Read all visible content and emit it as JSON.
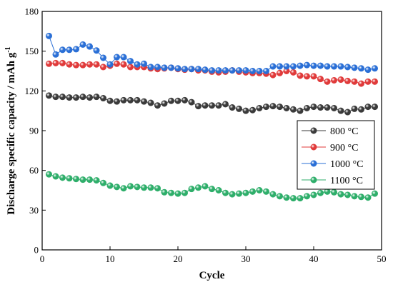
{
  "chart_data": {
    "type": "line",
    "xlabel": "Cycle",
    "ylabel": "Discharge specific capacity / mAh g",
    "ylabel_superscript": "-1",
    "xlim": [
      0,
      50
    ],
    "ylim": [
      0,
      180
    ],
    "x_ticks": [
      0,
      10,
      20,
      30,
      40,
      50
    ],
    "y_ticks": [
      0,
      30,
      60,
      90,
      120,
      150,
      180
    ],
    "grid": false,
    "legend_position": "right",
    "x": [
      1,
      2,
      3,
      4,
      5,
      6,
      7,
      8,
      9,
      10,
      11,
      12,
      13,
      14,
      15,
      16,
      17,
      18,
      19,
      20,
      21,
      22,
      23,
      24,
      25,
      26,
      27,
      28,
      29,
      30,
      31,
      32,
      33,
      34,
      35,
      36,
      37,
      38,
      39,
      40,
      41,
      42,
      43,
      44,
      45,
      46,
      47,
      48,
      49
    ],
    "series": [
      {
        "name": "800 °C",
        "color": "#3a3a3a",
        "values": [
          116.5,
          115.5,
          115.5,
          115,
          115,
          115.5,
          115,
          115.5,
          114.5,
          112.5,
          112,
          113,
          113,
          113,
          112,
          111,
          109,
          110.5,
          112.5,
          112.5,
          113,
          111.5,
          108.5,
          109,
          109,
          109,
          110,
          107.5,
          106.5,
          105,
          105.5,
          107,
          108,
          108.5,
          108,
          107,
          106,
          105,
          107,
          108,
          107.5,
          107.5,
          107,
          105,
          104,
          106.5,
          106,
          108,
          108
        ]
      },
      {
        "name": "900 °C",
        "color": "#e03a3a",
        "values": [
          140.5,
          141,
          141,
          140,
          139.5,
          139.5,
          140,
          140,
          138,
          139,
          140.5,
          140,
          138,
          138,
          138,
          137,
          136.5,
          137,
          137.5,
          136.5,
          136,
          136.5,
          135.5,
          135.5,
          134.5,
          134,
          134.5,
          135.5,
          134.5,
          134,
          133.5,
          133.5,
          133,
          132,
          133.5,
          135,
          134,
          131.5,
          131,
          131,
          129,
          127,
          128,
          128.5,
          127.5,
          127,
          125.5,
          127,
          127
        ]
      },
      {
        "name": "1000 °C",
        "color": "#2a6fd6",
        "values": [
          161.5,
          147.5,
          151,
          151,
          151.5,
          155,
          153.5,
          150.5,
          145,
          140,
          145.5,
          145.5,
          142.5,
          140,
          140.5,
          138,
          138,
          137.5,
          137.5,
          137,
          136.5,
          136.5,
          136.5,
          136,
          135.5,
          135.5,
          135.5,
          135.5,
          135.5,
          135.5,
          135,
          135,
          135,
          138.5,
          138.5,
          138.5,
          138.5,
          139,
          139.5,
          139,
          139,
          138.5,
          138.5,
          138.5,
          138,
          137.5,
          137,
          136,
          137
        ]
      },
      {
        "name": "1100 °C",
        "color": "#2eae6a",
        "values": [
          57,
          55.5,
          54.5,
          54,
          53.5,
          53,
          53,
          52.5,
          50.5,
          48.5,
          47.5,
          46.5,
          48,
          47.5,
          47,
          47,
          46.5,
          43.5,
          43,
          42.5,
          43,
          46,
          47,
          48,
          46,
          45,
          43,
          42,
          42.5,
          43,
          44,
          45,
          44,
          42,
          40.5,
          39.5,
          39,
          39,
          40.5,
          41.5,
          43,
          44,
          43.5,
          42,
          41.5,
          40.5,
          40,
          39.5,
          42.5
        ]
      }
    ]
  }
}
